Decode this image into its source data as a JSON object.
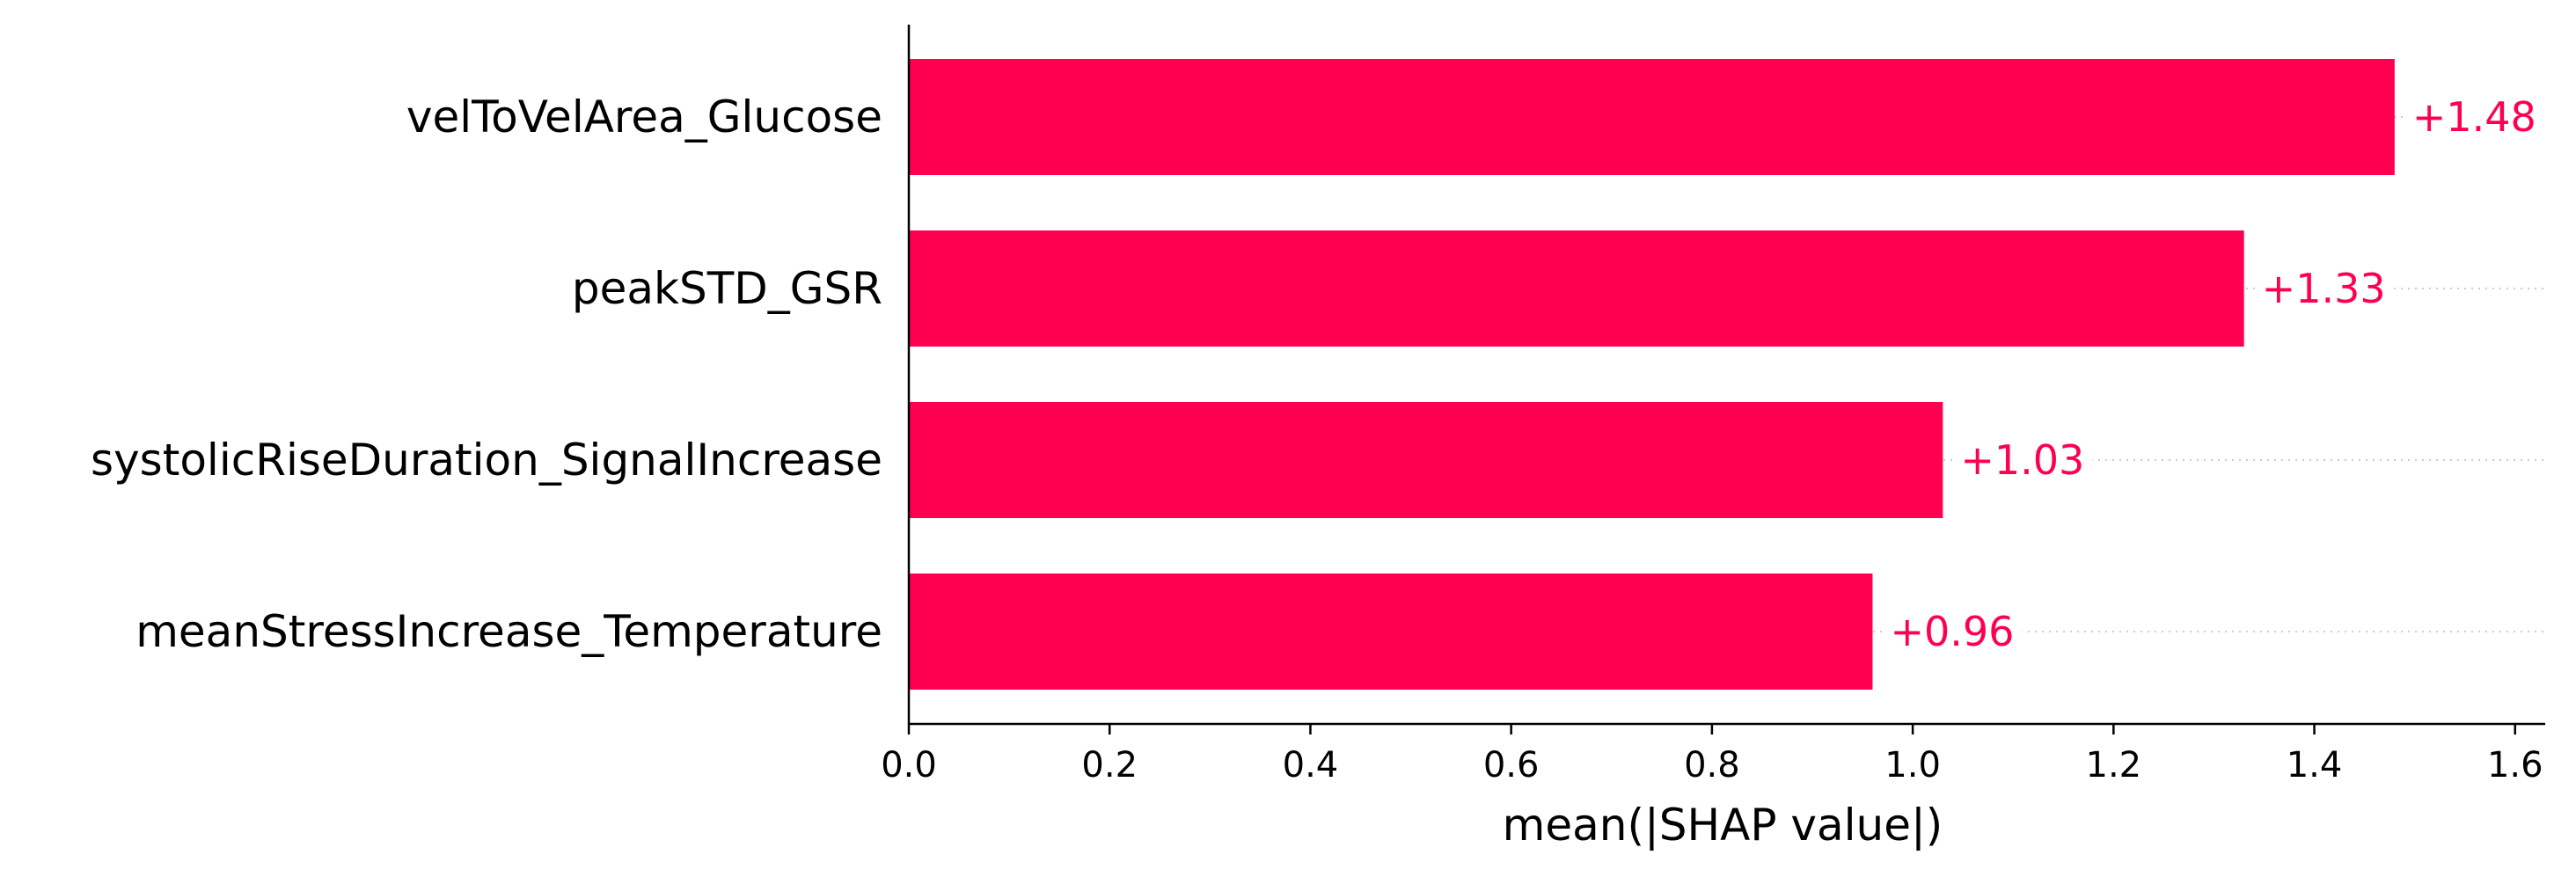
{
  "chart_data": {
    "type": "bar",
    "orientation": "horizontal",
    "categories": [
      "velToVelArea_Glucose",
      "peakSTD_GSR",
      "systolicRiseDuration_SignalIncrease",
      "meanStressIncrease_Temperature"
    ],
    "values": [
      1.48,
      1.33,
      1.03,
      0.96
    ],
    "data_labels": [
      "+1.48",
      "+1.33",
      "+1.03",
      "+0.96"
    ],
    "title": "",
    "xlabel": "mean(|SHAP value|)",
    "ylabel": "",
    "xlim": [
      0,
      1.63
    ],
    "xticks": [
      0.0,
      0.2,
      0.4,
      0.6,
      0.8,
      1.0,
      1.2,
      1.4,
      1.6
    ],
    "xtick_labels": [
      "0.0",
      "0.2",
      "0.4",
      "0.6",
      "0.8",
      "1.0",
      "1.2",
      "1.4",
      "1.6"
    ],
    "grid": false,
    "legend": "none",
    "bar_color": "#ff0051",
    "guide_line_color": "#cccccc"
  }
}
